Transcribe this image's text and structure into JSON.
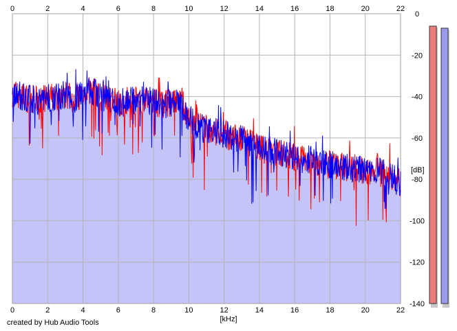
{
  "credit": "created by Hub Audio Tools",
  "chart_data": {
    "type": "area",
    "xlabel": "[kHz]",
    "ylabel": "[dB]",
    "xlim": [
      0,
      22
    ],
    "ylim": [
      -140,
      0
    ],
    "x_ticks": [
      "0",
      "2",
      "4",
      "6",
      "8",
      "10",
      "12",
      "14",
      "16",
      "18",
      "20",
      "22"
    ],
    "y_ticks": [
      "0",
      "-20",
      "-40",
      "-60",
      "-80",
      "-100",
      "-120",
      "-140"
    ],
    "grid": true,
    "colors": {
      "fill": "#c4c4f8",
      "red_channel": "#ff0000",
      "blue_channel": "#0000ff",
      "grid": "#b4b4b4",
      "meter_red": "#ee7e7e",
      "meter_blue": "#9a9aee"
    },
    "envelope": {
      "x_khz": [
        0,
        0.5,
        1.0,
        1.5,
        2.0,
        2.5,
        3.0,
        3.5,
        4.0,
        4.5,
        5.0,
        5.5,
        6.0,
        6.5,
        7.0,
        7.5,
        8.0,
        8.5,
        9.0,
        9.5,
        10.0,
        10.5,
        11.0,
        11.5,
        12.0,
        12.5,
        13.0,
        13.5,
        14.0,
        14.5,
        15.0,
        15.5,
        16.0,
        16.5,
        17.0,
        17.5,
        18.0,
        18.5,
        19.0,
        19.5,
        20.0,
        20.5,
        21.0,
        21.5,
        22.0
      ],
      "db": [
        -38,
        -40,
        -41,
        -42,
        -41,
        -40,
        -39,
        -41,
        -38,
        -37,
        -40,
        -41,
        -43,
        -42,
        -42,
        -41,
        -43,
        -44,
        -43,
        -44,
        -50,
        -54,
        -56,
        -57,
        -58,
        -60,
        -61,
        -63,
        -65,
        -66,
        -67,
        -68,
        -70,
        -70,
        -71,
        -72,
        -73,
        -74,
        -74,
        -75,
        -76,
        -76,
        -77,
        -79,
        -82
      ]
    },
    "series": [
      {
        "channel": "red"
      },
      {
        "channel": "blue"
      }
    ],
    "level_meters": [
      {
        "channel": "red",
        "level_db": -7
      },
      {
        "channel": "blue",
        "level_db": -8
      }
    ]
  }
}
